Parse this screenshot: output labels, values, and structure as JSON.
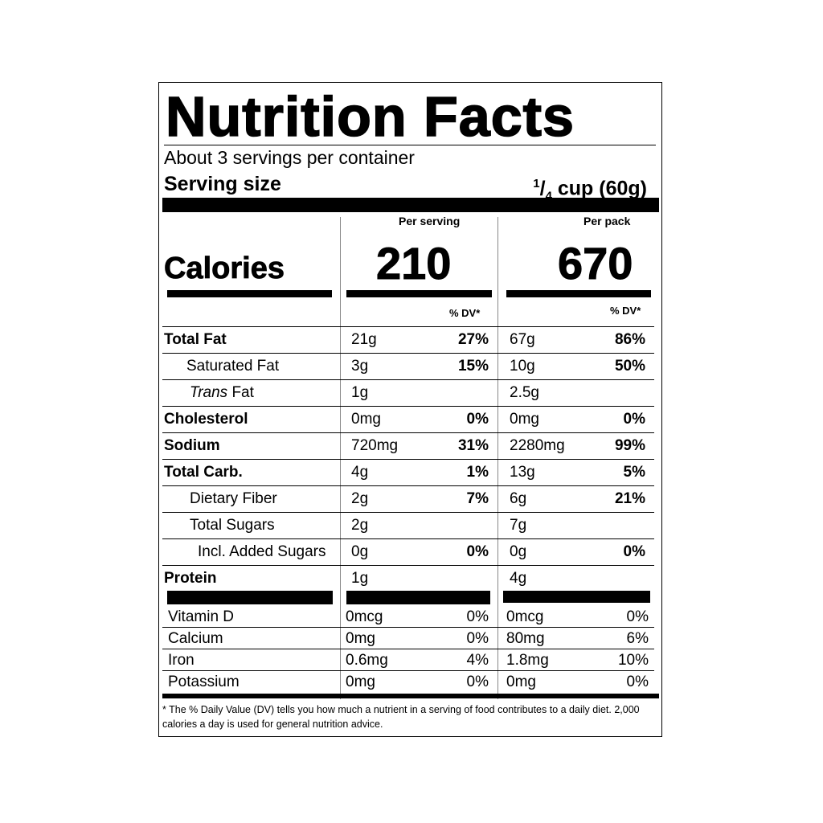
{
  "title": "Nutrition Facts",
  "servings_per_container": "About 3 servings per container",
  "serving_size": {
    "label": "Serving size",
    "value": "cup (60g)",
    "fraction_num": "1",
    "fraction_den": "4"
  },
  "columns": {
    "per_serving": "Per serving",
    "per_pack": "Per pack",
    "dv_header": "% DV*"
  },
  "calories": {
    "label": "Calories",
    "per_serving": "210",
    "per_pack": "670"
  },
  "nutrients": [
    {
      "name": "Total Fat",
      "serving_amount": "21g",
      "serving_dv": "27%",
      "pack_amount": "67g",
      "pack_dv": "86%"
    },
    {
      "name": "Saturated Fat",
      "serving_amount": "3g",
      "serving_dv": "15%",
      "pack_amount": "10g",
      "pack_dv": "50%"
    },
    {
      "name_italic": "Trans",
      "name": " Fat",
      "serving_amount": "1g",
      "serving_dv": "",
      "pack_amount": "2.5g",
      "pack_dv": ""
    },
    {
      "name": "Cholesterol",
      "serving_amount": "0mg",
      "serving_dv": "0%",
      "pack_amount": "0mg",
      "pack_dv": "0%"
    },
    {
      "name": "Sodium",
      "serving_amount": "720mg",
      "serving_dv": "31%",
      "pack_amount": "2280mg",
      "pack_dv": "99%"
    },
    {
      "name": "Total Carb.",
      "serving_amount": "4g",
      "serving_dv": "1%",
      "pack_amount": "13g",
      "pack_dv": "5%"
    },
    {
      "name": "Dietary Fiber",
      "serving_amount": "2g",
      "serving_dv": "7%",
      "pack_amount": "6g",
      "pack_dv": "21%"
    },
    {
      "name": "Total Sugars",
      "serving_amount": "2g",
      "serving_dv": "",
      "pack_amount": "7g",
      "pack_dv": ""
    },
    {
      "name": "Incl. Added Sugars",
      "serving_amount": "0g",
      "serving_dv": "0%",
      "pack_amount": "0g",
      "pack_dv": "0%"
    },
    {
      "name": "Protein",
      "serving_amount": "1g",
      "serving_dv": "",
      "pack_amount": "4g",
      "pack_dv": ""
    }
  ],
  "vitamins": [
    {
      "name": "Vitamin D",
      "serving_amount": "0mcg",
      "serving_dv": "0%",
      "pack_amount": "0mcg",
      "pack_dv": "0%"
    },
    {
      "name": "Calcium",
      "serving_amount": "0mg",
      "serving_dv": "0%",
      "pack_amount": "80mg",
      "pack_dv": "6%"
    },
    {
      "name": "Iron",
      "serving_amount": "0.6mg",
      "serving_dv": "4%",
      "pack_amount": "1.8mg",
      "pack_dv": "10%"
    },
    {
      "name": "Potassium",
      "serving_amount": "0mg",
      "serving_dv": "0%",
      "pack_amount": "0mg",
      "pack_dv": "0%"
    }
  ],
  "footnote": "* The % Daily Value (DV) tells you how much a nutrient in a serving of food contributes to a daily diet. 2,000 calories a day is used for general nutrition advice."
}
